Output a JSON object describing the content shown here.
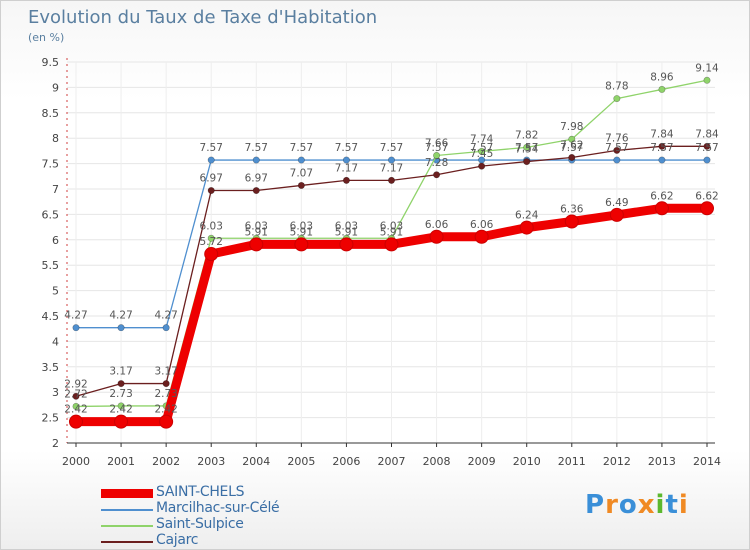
{
  "chart_data": {
    "type": "line",
    "title": "Evolution du Taux de Taxe d'Habitation",
    "subtitle": "(en %)",
    "x": [
      "2000",
      "2001",
      "2002",
      "2003",
      "2004",
      "2005",
      "2006",
      "2007",
      "2008",
      "2009",
      "2010",
      "2011",
      "2012",
      "2013",
      "2014"
    ],
    "ylim": [
      2,
      9.5
    ],
    "yticks": [
      "2",
      "2.5",
      "3",
      "3.5",
      "4",
      "4.5",
      "5",
      "5.5",
      "6",
      "6.5",
      "7",
      "7.5",
      "8",
      "8.5",
      "9",
      "9.5"
    ],
    "series": [
      {
        "name": "Marcilhac-sur-Célé",
        "color": "#4f8fcf",
        "values": [
          4.27,
          4.27,
          4.27,
          7.57,
          7.57,
          7.57,
          7.57,
          7.57,
          7.57,
          7.57,
          7.57,
          7.57,
          7.57,
          7.57,
          7.57
        ]
      },
      {
        "name": "Saint-Sulpice",
        "color": "#8fd36a",
        "values": [
          2.72,
          2.73,
          2.73,
          6.03,
          6.03,
          6.03,
          6.03,
          6.03,
          7.66,
          7.74,
          7.82,
          7.98,
          8.78,
          8.96,
          9.14
        ]
      },
      {
        "name": "Cajarc",
        "color": "#6b1f1f",
        "values": [
          2.92,
          3.17,
          3.17,
          6.97,
          6.97,
          7.07,
          7.17,
          7.17,
          7.28,
          7.45,
          7.54,
          7.62,
          7.76,
          7.84,
          7.84
        ]
      },
      {
        "name": "SAINT-CHELS",
        "color": "#ee0000",
        "values": [
          2.42,
          2.42,
          2.42,
          5.72,
          5.91,
          5.91,
          5.91,
          5.91,
          6.06,
          6.06,
          6.24,
          6.36,
          6.49,
          6.62,
          6.62
        ]
      }
    ],
    "labels": [
      {
        "series": "Marcilhac-sur-Célé",
        "texts": [
          "4.27",
          "4.27",
          "4.27",
          "7.57",
          "7.57",
          "7.57",
          "7.57",
          "7.57",
          "7.57",
          "7.57",
          "7.57",
          "7.57",
          "7.57",
          "7.57",
          "7.57"
        ]
      },
      {
        "series": "Saint-Sulpice",
        "texts": [
          "2.72",
          "2.73",
          "2.73",
          "6.03",
          "6.03",
          "6.03",
          "6.03",
          "6.03",
          "7.66",
          "7.74",
          "7.82",
          "7.98",
          "8.78",
          "8.96",
          "9.14"
        ]
      },
      {
        "series": "Cajarc",
        "texts": [
          "2.92",
          "3.17",
          "3.17",
          "6.97",
          "6.97",
          "7.07",
          "7.17",
          "7.17",
          "7.28",
          "7.45",
          "7.54",
          "7.62",
          "7.76",
          "7.84",
          "7.84"
        ]
      },
      {
        "series": "SAINT-CHELS",
        "texts": [
          "2.42",
          "2.42",
          "2.42",
          "5.72",
          "5.91",
          "5.91",
          "5.91",
          "5.91",
          "6.06",
          "6.06",
          "6.24",
          "6.36",
          "6.49",
          "6.62",
          "6.62"
        ]
      }
    ],
    "legend": [
      "SAINT-CHELS",
      "Marcilhac-sur-Célé",
      "Saint-Sulpice",
      "Cajarc"
    ]
  },
  "logo": {
    "text": "Proxiti",
    "letters": [
      "P",
      "r",
      "o",
      "x",
      "i",
      "t",
      "i"
    ],
    "colors": [
      "#3a8fd8",
      "#f08a24",
      "#3a8fd8",
      "#f08a24",
      "#5cb82e",
      "#3a8fd8",
      "#f08a24"
    ]
  }
}
